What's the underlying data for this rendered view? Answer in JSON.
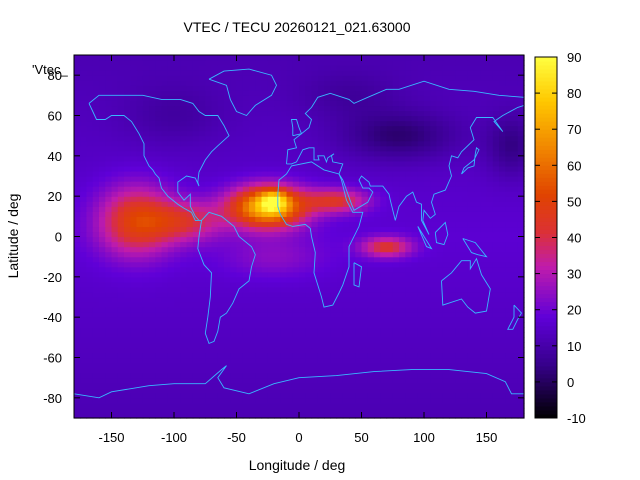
{
  "chart_data": {
    "type": "heatmap",
    "title": "VTEC / TECU 20260121_021.63000",
    "xlabel": "Longitude / deg",
    "ylabel": "Latitude / deg",
    "key_label": "'Vtec_",
    "xlim": [
      -180,
      180
    ],
    "ylim": [
      -90,
      90
    ],
    "x_ticks": [
      -150,
      -100,
      -50,
      0,
      50,
      100,
      150
    ],
    "y_ticks": [
      -80,
      -60,
      -40,
      -20,
      0,
      20,
      40,
      60,
      80
    ],
    "colorbar": {
      "range": [
        -10,
        90
      ],
      "ticks": [
        -10,
        0,
        10,
        20,
        30,
        40,
        50,
        60,
        70,
        80,
        90
      ]
    },
    "grid": false,
    "legend": "top-left",
    "colors": {
      "low": "#000000",
      "mid_low": "#5f00d8",
      "mid": "#c01cab",
      "mid_high": "#e04400",
      "high": "#ffff40",
      "coastline": "#38b8ff"
    },
    "background_vtec": 17,
    "enhancements": [
      {
        "lon": -25,
        "lat": 15,
        "peak": 62,
        "sigma_lon": 30,
        "sigma_lat": 10
      },
      {
        "lon": -20,
        "lat": 18,
        "peak": 28,
        "sigma_lon": 10,
        "sigma_lat": 5
      },
      {
        "lon": -130,
        "lat": 8,
        "peak": 33,
        "sigma_lon": 30,
        "sigma_lat": 17
      },
      {
        "lon": -90,
        "lat": 8,
        "peak": 22,
        "sigma_lon": 30,
        "sigma_lat": 10
      },
      {
        "lon": 30,
        "lat": 18,
        "peak": 27,
        "sigma_lon": 25,
        "sigma_lat": 6
      },
      {
        "lon": 70,
        "lat": -5,
        "peak": 27,
        "sigma_lon": 20,
        "sigma_lat": 5
      },
      {
        "lon": -20,
        "lat": -10,
        "peak": 8,
        "sigma_lon": 40,
        "sigma_lat": 10
      }
    ],
    "depletions": [
      {
        "lon": 80,
        "lat": 50,
        "depth": 12,
        "sigma_lon": 45,
        "sigma_lat": 12
      },
      {
        "lon": 170,
        "lat": 45,
        "depth": 10,
        "sigma_lon": 20,
        "sigma_lat": 15
      },
      {
        "lon": -100,
        "lat": 60,
        "depth": 5,
        "sigma_lon": 40,
        "sigma_lat": 15
      },
      {
        "lon": 40,
        "lat": 70,
        "depth": 5,
        "sigma_lon": 40,
        "sigma_lat": 12
      }
    ]
  }
}
